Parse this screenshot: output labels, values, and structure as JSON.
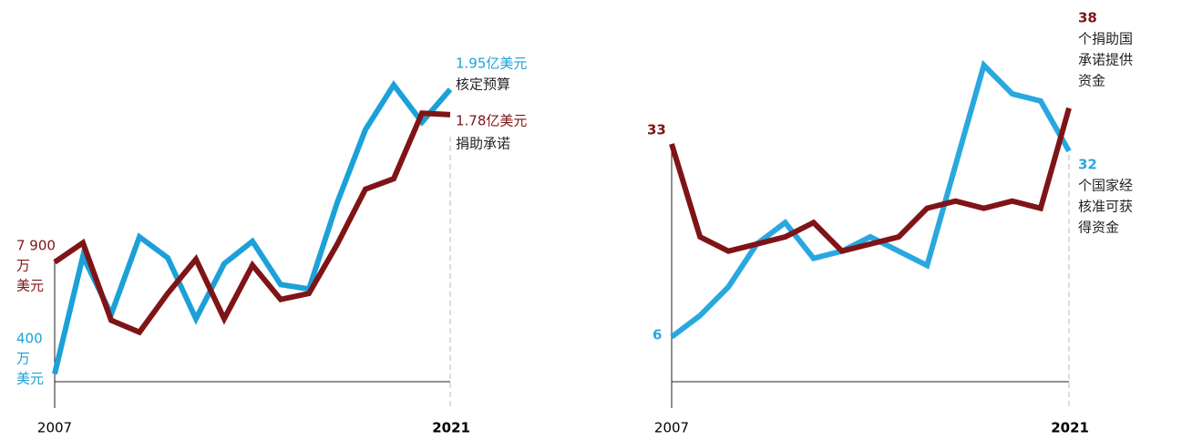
{
  "chart_data": [
    {
      "type": "line",
      "x": [
        2007,
        2008,
        2009,
        2010,
        2011,
        2012,
        2013,
        2014,
        2015,
        2016,
        2017,
        2018,
        2019,
        2020,
        2021
      ],
      "xticks": [
        2007,
        2021
      ],
      "xlim": [
        2007,
        2021
      ],
      "ylim": [
        0,
        255
      ],
      "series": [
        {
          "color": "#1ba1d8",
          "values": [
            4,
            83,
            44,
            96,
            82,
            41,
            78,
            93,
            64,
            61,
            119,
            168,
            198,
            173,
            195
          ],
          "start_label": [
            "400",
            "万",
            "美元"
          ],
          "end_label": [
            "1.95亿美元",
            "核定预算"
          ]
        },
        {
          "color": "#7f1416",
          "values": [
            79,
            92,
            40,
            32,
            58,
            81,
            41,
            77,
            54,
            58,
            91,
            128,
            135,
            179,
            178
          ],
          "start_label": [
            "7 900",
            "万",
            "美元"
          ],
          "end_label": [
            "1.78亿美元",
            "捐助承诺"
          ]
        }
      ]
    },
    {
      "type": "line",
      "x": [
        2007,
        2008,
        2009,
        2010,
        2011,
        2012,
        2013,
        2014,
        2015,
        2016,
        2017,
        2018,
        2019,
        2020,
        2021
      ],
      "xticks": [
        2007,
        2021
      ],
      "xlim": [
        2007,
        2021
      ],
      "ylim": [
        0,
        53
      ],
      "series": [
        {
          "color": "#29a8e0",
          "values": [
            6,
            9,
            13,
            19,
            22,
            17,
            18,
            20,
            18,
            16,
            30,
            44,
            40,
            39,
            32
          ],
          "start_label": [
            "6"
          ],
          "end_label": [
            "32",
            "个国家经",
            "核准可获",
            "得资金"
          ]
        },
        {
          "color": "#7f1416",
          "values": [
            33,
            20,
            18,
            19,
            20,
            22,
            18,
            19,
            20,
            24,
            25,
            24,
            25,
            24,
            38
          ],
          "start_label": [
            "33"
          ],
          "end_label": [
            "38",
            "个捐助国",
            "承诺提供",
            "资金"
          ]
        }
      ]
    }
  ]
}
